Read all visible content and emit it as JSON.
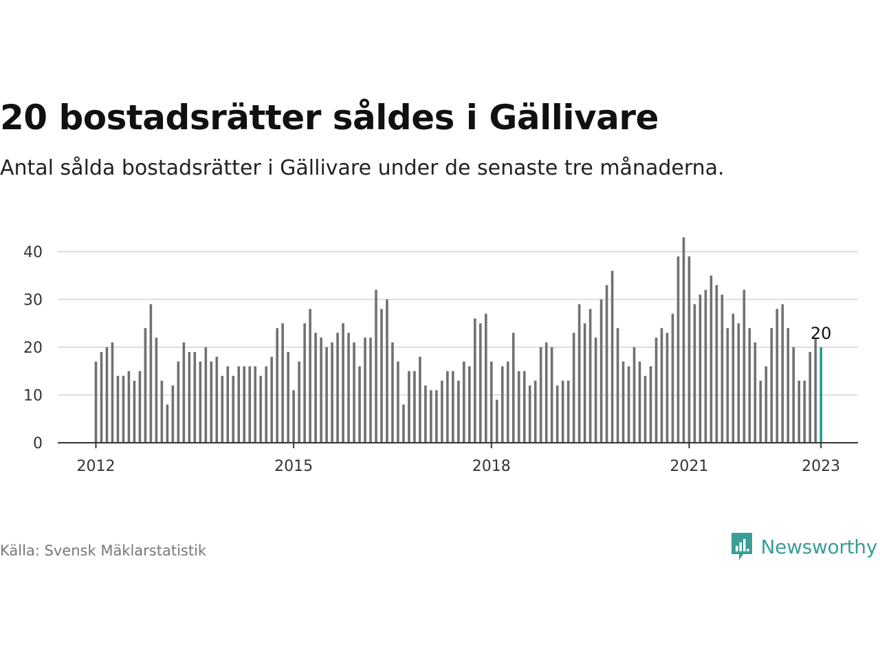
{
  "title": "20 bostadsrätter såldes i Gällivare",
  "subtitle": "Antal sålda bostadsrätter i Gällivare under de senaste tre månaderna.",
  "source": "Källa: Svensk Mäklarstatistik",
  "brand": {
    "name": "Newsworthy",
    "icon": "newsworthy-logo-icon",
    "color": "#3a9e97"
  },
  "colors": {
    "bar": "#707070",
    "highlight": "#1a9e9a",
    "grid": "#dddddd",
    "axis": "#333333",
    "tick_text": "#333333"
  },
  "chart_data": {
    "type": "bar",
    "title": "",
    "xlabel": "",
    "ylabel": "",
    "ylim": [
      0,
      43
    ],
    "yticks": [
      0,
      10,
      20,
      30,
      40
    ],
    "grid": true,
    "x_tick_labels": [
      "2012",
      "2015",
      "2018",
      "2021",
      "2023"
    ],
    "start_month": "2012-01",
    "end_month": "2023-01",
    "values": [
      17,
      19,
      20,
      21,
      14,
      14,
      15,
      13,
      15,
      24,
      29,
      22,
      13,
      8,
      12,
      17,
      21,
      19,
      19,
      17,
      20,
      17,
      18,
      14,
      16,
      14,
      16,
      16,
      16,
      16,
      14,
      16,
      18,
      24,
      25,
      19,
      11,
      17,
      25,
      28,
      23,
      22,
      20,
      21,
      23,
      25,
      23,
      21,
      16,
      22,
      22,
      32,
      28,
      30,
      21,
      17,
      8,
      15,
      15,
      18,
      12,
      11,
      11,
      13,
      15,
      15,
      13,
      17,
      16,
      26,
      25,
      27,
      17,
      9,
      16,
      17,
      23,
      15,
      15,
      12,
      13,
      20,
      21,
      20,
      12,
      13,
      13,
      23,
      29,
      25,
      28,
      22,
      30,
      33,
      36,
      24,
      17,
      16,
      20,
      17,
      14,
      16,
      22,
      24,
      23,
      27,
      39,
      43,
      39,
      29,
      31,
      32,
      35,
      33,
      31,
      24,
      27,
      25,
      32,
      24,
      21,
      13,
      16,
      24,
      28,
      29,
      24,
      20,
      13,
      13,
      19,
      22,
      20
    ],
    "highlight_last": true,
    "last_value_label": "20"
  }
}
